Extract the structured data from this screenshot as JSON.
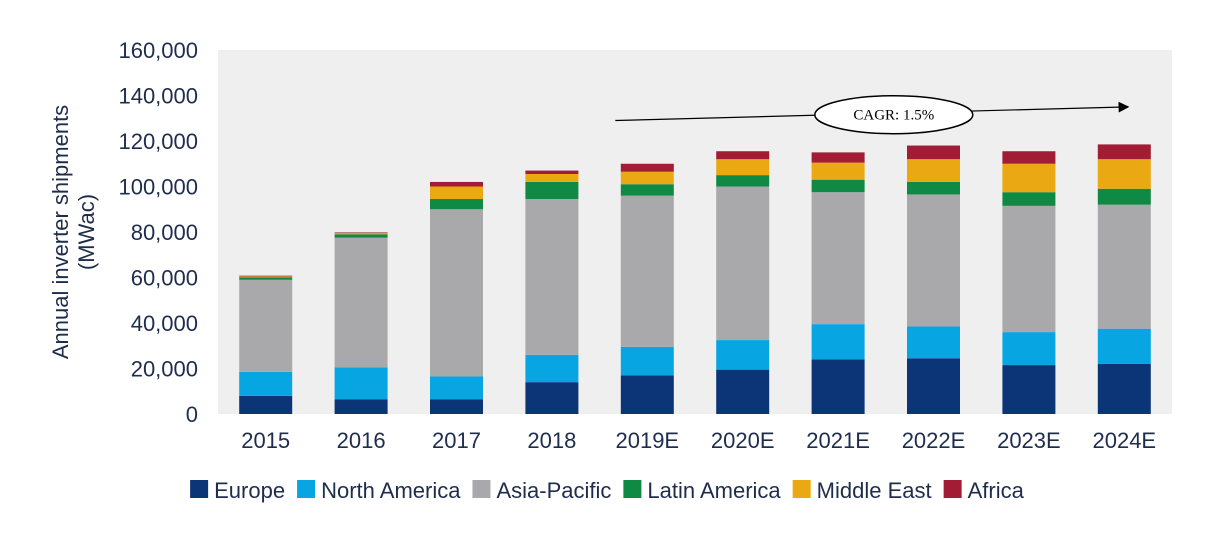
{
  "chart_data": {
    "type": "bar",
    "stacked": true,
    "categories": [
      "2015",
      "2016",
      "2017",
      "2018",
      "2019E",
      "2020E",
      "2021E",
      "2022E",
      "2023E",
      "2024E"
    ],
    "series": [
      {
        "name": "Europe",
        "color": "#0c3577",
        "values": [
          8000,
          6500,
          6500,
          14000,
          17000,
          19500,
          24000,
          24500,
          21500,
          22000
        ]
      },
      {
        "name": "North America",
        "color": "#07a6e3",
        "values": [
          10500,
          14000,
          10000,
          12000,
          12500,
          13000,
          15500,
          14000,
          14500,
          15500
        ]
      },
      {
        "name": "Asia-Pacific",
        "color": "#a9a9ab",
        "values": [
          40500,
          57000,
          73500,
          68500,
          66500,
          67500,
          58000,
          58000,
          55500,
          54500
        ]
      },
      {
        "name": "Latin America",
        "color": "#0e8a44",
        "values": [
          1000,
          1500,
          4500,
          7500,
          5000,
          5000,
          5500,
          5500,
          6000,
          7000
        ]
      },
      {
        "name": "Middle East",
        "color": "#eaa912",
        "values": [
          500,
          500,
          5500,
          3500,
          5500,
          7000,
          7500,
          10000,
          12500,
          13000
        ]
      },
      {
        "name": "Africa",
        "color": "#a11c34",
        "values": [
          300,
          300,
          2000,
          1500,
          3500,
          3500,
          4500,
          6000,
          5500,
          6500
        ]
      }
    ],
    "ylabel": "Annual inverter shipments (MWac)",
    "ylim": [
      0,
      160000
    ],
    "yticks": [
      0,
      20000,
      40000,
      60000,
      80000,
      100000,
      120000,
      140000,
      160000
    ],
    "ytick_labels": [
      "0",
      "20,000",
      "40,000",
      "60,000",
      "80,000",
      "100,000",
      "120,000",
      "140,000",
      "160,000"
    ],
    "grid": false,
    "plot_background": "#efefef",
    "legend_position": "bottom",
    "annotation": {
      "text": "CAGR: 1.5%",
      "type": "arrow",
      "from_category": "2019E",
      "to_category": "2024E",
      "y_start": 129000,
      "y_end": 135000
    }
  }
}
